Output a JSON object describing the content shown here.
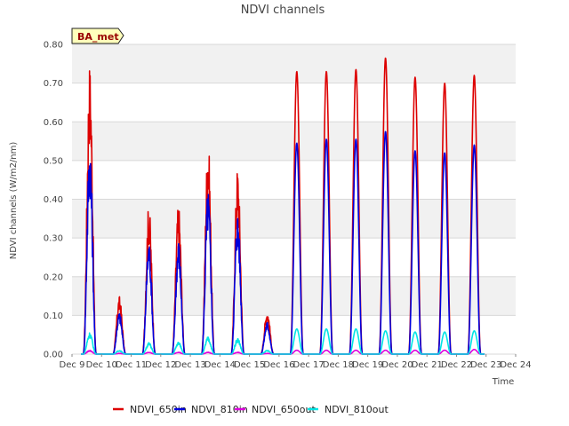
{
  "chart_data": {
    "type": "line",
    "title": "NDVI channels",
    "xlabel": "Time",
    "ylabel": "NDVI channels (W/m2/nm)",
    "ylim": [
      0,
      0.8
    ],
    "xlim": [
      9,
      24
    ],
    "y_ticks": [
      "0.00",
      "0.10",
      "0.20",
      "0.30",
      "0.40",
      "0.50",
      "0.60",
      "0.70",
      "0.80"
    ],
    "x_ticks": [
      "Dec 9",
      "Dec 10",
      "Dec 11",
      "Dec 12",
      "Dec 13",
      "Dec 14",
      "Dec 15",
      "Dec 16",
      "Dec 17",
      "Dec 18",
      "Dec 19",
      "Dec 20",
      "Dec 21",
      "Dec 22",
      "Dec 23",
      "Dec 24"
    ],
    "grid": true,
    "legend_position": "bottom",
    "annotation": "BA_met",
    "day_centers": [
      9.6,
      10.6,
      11.6,
      12.6,
      13.6,
      14.6,
      15.6,
      16.6,
      17.6,
      18.6,
      19.6,
      20.6,
      21.6,
      22.6
    ],
    "series": [
      {
        "name": "NDVI_650in",
        "color": "#dd0000",
        "daily_peaks": [
          0.76,
          0.15,
          0.39,
          0.39,
          0.56,
          0.49,
          0.115,
          0.73,
          0.73,
          0.735,
          0.765,
          0.715,
          0.7,
          0.72
        ]
      },
      {
        "name": "NDVI_810in",
        "color": "#0000dd",
        "daily_peaks": [
          0.56,
          0.11,
          0.3,
          0.3,
          0.43,
          0.375,
          0.085,
          0.545,
          0.555,
          0.555,
          0.575,
          0.525,
          0.52,
          0.54
        ]
      },
      {
        "name": "NDVI_650out",
        "color": "#dd00dd",
        "daily_peaks": [
          0.01,
          0.002,
          0.005,
          0.005,
          0.005,
          0.005,
          0.002,
          0.01,
          0.01,
          0.01,
          0.01,
          0.01,
          0.01,
          0.012
        ]
      },
      {
        "name": "NDVI_810out",
        "color": "#00e5e5",
        "daily_peaks": [
          0.057,
          0.01,
          0.03,
          0.032,
          0.045,
          0.042,
          0.01,
          0.065,
          0.065,
          0.065,
          0.06,
          0.057,
          0.057,
          0.06
        ]
      }
    ]
  }
}
